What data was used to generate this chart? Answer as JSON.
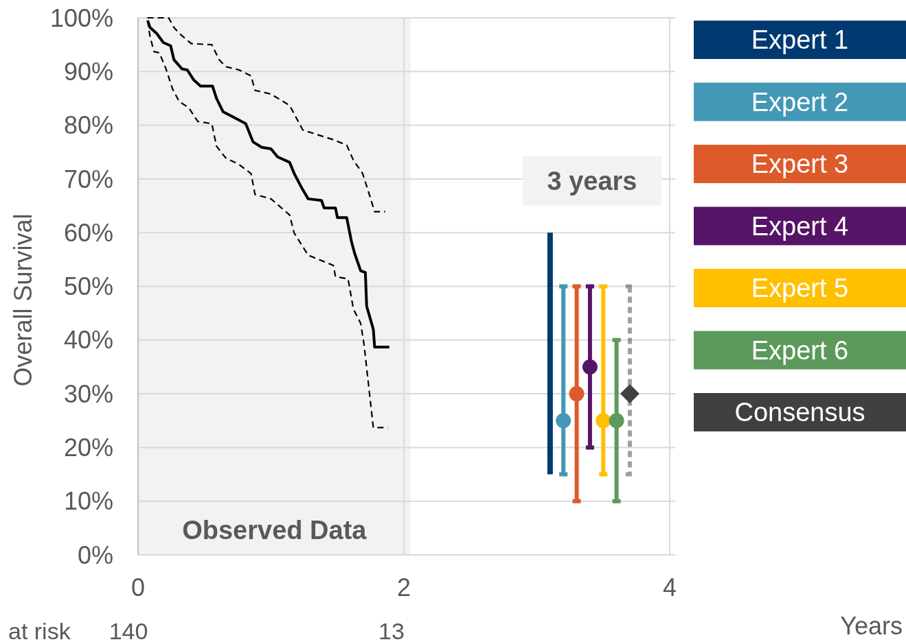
{
  "chart_data": {
    "type": "line",
    "ylabel": "Overall Survival",
    "xlim": [
      0,
      4
    ],
    "xticks": [
      0,
      2,
      4
    ],
    "ylim": [
      0,
      100
    ],
    "yticks": [
      {
        "value": 0,
        "label": "0%"
      },
      {
        "value": 10,
        "label": "10%"
      },
      {
        "value": 20,
        "label": "20%"
      },
      {
        "value": 30,
        "label": "30%"
      },
      {
        "value": 40,
        "label": "40%"
      },
      {
        "value": 50,
        "label": "50%"
      },
      {
        "value": 60,
        "label": "60%"
      },
      {
        "value": 70,
        "label": "70%"
      },
      {
        "value": 80,
        "label": "80%"
      },
      {
        "value": 90,
        "label": "90%"
      },
      {
        "value": 100,
        "label": "100%"
      }
    ],
    "grid": true,
    "legend": "right",
    "bands": [
      {
        "axis": "x",
        "from": 0,
        "to": 2.05,
        "label": "Observed Data",
        "color": "#f2f2f2"
      }
    ],
    "annotations": [
      "3 years",
      "at risk",
      "140",
      "13",
      "Years"
    ],
    "series": [
      {
        "color": "#000000",
        "line_style": "solid",
        "x": [
          0.072,
          0.09,
          0.14,
          0.19,
          0.245,
          0.27,
          0.33,
          0.37,
          0.42,
          0.47,
          0.56,
          0.59,
          0.64,
          0.71,
          0.81,
          0.865,
          0.93,
          1.0,
          1.05,
          1.14,
          1.175,
          1.23,
          1.28,
          1.38,
          1.4,
          1.485,
          1.5,
          1.57,
          1.605,
          1.63,
          1.675,
          1.71,
          1.72,
          1.77,
          1.78,
          1.89
        ],
        "values": [
          99.5,
          98.2,
          97.1,
          95.4,
          94.8,
          92.2,
          90.5,
          90.3,
          88.4,
          87.3,
          87.3,
          85,
          82.5,
          81.6,
          80.3,
          76.9,
          75.9,
          75.6,
          74.1,
          73.1,
          71,
          68.4,
          66.3,
          66,
          64.6,
          64.6,
          62.8,
          62.8,
          58.4,
          56.1,
          52.9,
          52.6,
          46.3,
          42,
          38.7,
          38.7
        ]
      },
      {
        "color": "#000000",
        "line_style": "dashed",
        "x": [
          0.07,
          0.23,
          0.27,
          0.31,
          0.4,
          0.555,
          0.61,
          0.66,
          0.76,
          0.85,
          0.88,
          1.0,
          1.14,
          1.24,
          1.33,
          1.47,
          1.57,
          1.62,
          1.69,
          1.74,
          1.78,
          1.86
        ],
        "values": [
          100,
          100,
          98.2,
          97.1,
          95.2,
          95,
          92.2,
          90.9,
          90.3,
          89.2,
          86.5,
          85.8,
          83.7,
          79.1,
          78.4,
          77.3,
          76.3,
          73.5,
          71,
          67.1,
          63.9,
          63.9
        ]
      },
      {
        "color": "#000000",
        "line_style": "dashed",
        "x": [
          0.072,
          0.09,
          0.12,
          0.16,
          0.21,
          0.26,
          0.31,
          0.38,
          0.45,
          0.555,
          0.59,
          0.66,
          0.76,
          0.85,
          0.88,
          1.0,
          1.14,
          1.175,
          1.28,
          1.47,
          1.485,
          1.58,
          1.62,
          1.675,
          1.7,
          1.77,
          1.88
        ],
        "values": [
          99.5,
          96.5,
          93.7,
          93.5,
          90.5,
          86.7,
          84.4,
          83.3,
          80.7,
          80.3,
          76.1,
          73.9,
          72.7,
          71,
          67.1,
          66.3,
          63.3,
          59.9,
          55.8,
          53.9,
          51.8,
          51.4,
          45.8,
          43.1,
          39.2,
          23.7,
          23.7
        ]
      },
      {
        "type": "bar",
        "name": "Expert 1",
        "color": "#003a70",
        "x": [
          3.1
        ],
        "base": [
          15
        ],
        "values": [
          45
        ]
      },
      {
        "type": "scatter",
        "name": "Expert 2",
        "color": "#4298b5",
        "marker": "circle",
        "line_style": "solid",
        "x": [
          3.2
        ],
        "values": [
          25
        ],
        "errors": [
          [
            15,
            50
          ]
        ]
      },
      {
        "type": "scatter",
        "name": "Expert 3",
        "color": "#dd5a2a",
        "marker": "circle",
        "line_style": "solid",
        "x": [
          3.3
        ],
        "values": [
          30
        ],
        "errors": [
          [
            10,
            50
          ]
        ]
      },
      {
        "type": "scatter",
        "name": "Expert 4",
        "color": "#561467",
        "marker": "circle",
        "line_style": "solid",
        "x": [
          3.4
        ],
        "values": [
          35
        ],
        "errors": [
          [
            20,
            50
          ]
        ]
      },
      {
        "type": "scatter",
        "name": "Expert 5",
        "color": "#ffc000",
        "marker": "circle",
        "line_style": "solid",
        "x": [
          3.5
        ],
        "values": [
          25
        ],
        "errors": [
          [
            15,
            50
          ]
        ]
      },
      {
        "type": "scatter",
        "name": "Expert 6",
        "color": "#5b9a5b",
        "marker": "circle",
        "line_style": "solid",
        "x": [
          3.6
        ],
        "values": [
          25
        ],
        "errors": [
          [
            10,
            40
          ]
        ]
      },
      {
        "type": "scatter",
        "name": "Consensus",
        "color": "#404040",
        "marker": "diamond",
        "line_style": "dashed",
        "x": [
          3.7
        ],
        "values": [
          30
        ],
        "errors": [
          [
            15,
            50
          ]
        ]
      }
    ]
  }
}
